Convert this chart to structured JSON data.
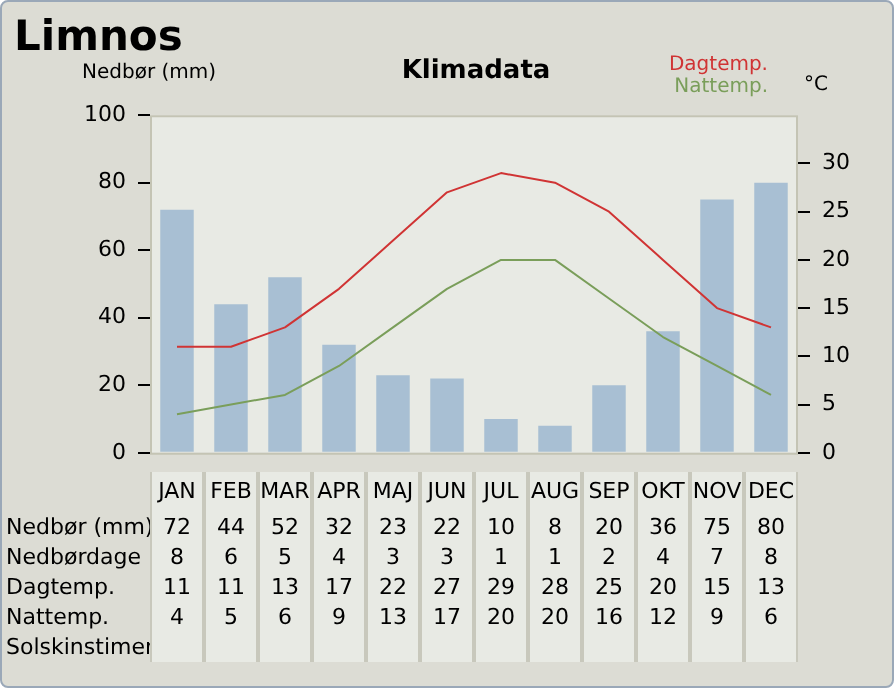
{
  "chart_data": {
    "type": "bar",
    "title": "Limnos",
    "subtitle": "Klimadata",
    "ylabel": "Nedbør (mm)",
    "y2label": "°C",
    "categories": [
      "JAN",
      "FEB",
      "MAR",
      "APR",
      "MAJ",
      "JUN",
      "JUL",
      "AUG",
      "SEP",
      "OKT",
      "NOV",
      "DEC"
    ],
    "series": [
      {
        "color": "#a8bfd3",
        "values": [
          72,
          44,
          52,
          32,
          23,
          22,
          10,
          8,
          20,
          36,
          75,
          80
        ]
      },
      {
        "name": "Dagtemp.",
        "type": "line",
        "axis": "y2",
        "color": "#d03434",
        "values": [
          11,
          11,
          13,
          17,
          22,
          27,
          29,
          28,
          25,
          20,
          15,
          13
        ]
      },
      {
        "name": "Nattemp.",
        "type": "line",
        "axis": "y2",
        "color": "#7a9e5a",
        "values": [
          4,
          5,
          6,
          9,
          13,
          17,
          20,
          20,
          16,
          12,
          9,
          6
        ]
      }
    ],
    "annotations": [
      "Nedbørdage",
      "8",
      "6",
      "5",
      "4",
      "3",
      "3",
      "1",
      "1",
      "2",
      "4",
      "7",
      "8",
      "Solskinstimer"
    ],
    "ylim": [
      0,
      100
    ],
    "yticks": [
      0,
      20,
      40,
      60,
      80,
      100
    ],
    "y2lim": [
      0,
      35
    ],
    "y2ticks": [
      0,
      5,
      10,
      15,
      20,
      25,
      30
    ],
    "legend": "top right",
    "data_labels": true,
    "marker": "none"
  }
}
